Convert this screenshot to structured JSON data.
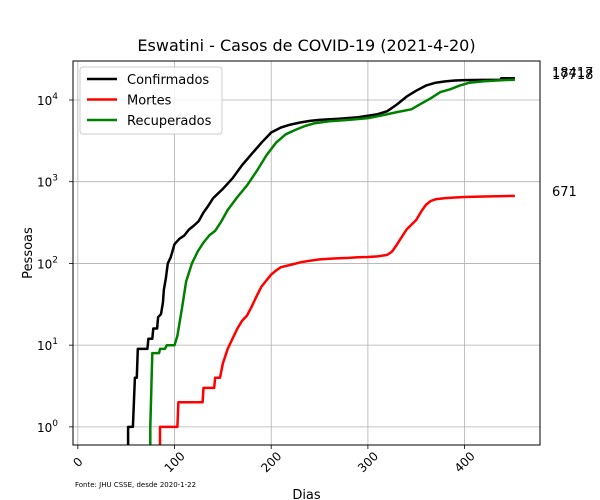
{
  "chart_data": {
    "type": "line",
    "title": "Eswatini - Casos de COVID-19 (2021-4-20)",
    "xlabel": "Dias",
    "ylabel": "Pessoas",
    "y_scale": "log",
    "xlim": [
      -5,
      478
    ],
    "ylim": [
      0.6,
      30000
    ],
    "x_ticks": [
      0,
      100,
      200,
      300,
      400
    ],
    "x_tick_labels": [
      "0",
      "100",
      "200",
      "300",
      "400"
    ],
    "y_ticks": [
      1,
      10,
      100,
      1000,
      10000
    ],
    "y_tick_exponents": [
      "0",
      "1",
      "2",
      "3",
      "4"
    ],
    "y_tick_base": "10",
    "grid": true,
    "legend_position": "top-left",
    "source_note": "Fonte: JHU CSSE, desde 2020-1-22",
    "end_labels": [
      "18417",
      "17718",
      "671"
    ],
    "series": [
      {
        "name": "Confirmados",
        "color": "#000000",
        "end_label": "18417",
        "points": [
          [
            52,
            1
          ],
          [
            57,
            1
          ],
          [
            59,
            4
          ],
          [
            61,
            4
          ],
          [
            62,
            9
          ],
          [
            72,
            9
          ],
          [
            73,
            12
          ],
          [
            77,
            12
          ],
          [
            78,
            16
          ],
          [
            82,
            16
          ],
          [
            83,
            22
          ],
          [
            86,
            24
          ],
          [
            88,
            33
          ],
          [
            89,
            48
          ],
          [
            91,
            65
          ],
          [
            93,
            100
          ],
          [
            96,
            119
          ],
          [
            100,
            172
          ],
          [
            105,
            200
          ],
          [
            110,
            219
          ],
          [
            115,
            260
          ],
          [
            120,
            290
          ],
          [
            125,
            330
          ],
          [
            130,
            420
          ],
          [
            135,
            510
          ],
          [
            140,
            630
          ],
          [
            150,
            820
          ],
          [
            160,
            1100
          ],
          [
            170,
            1600
          ],
          [
            180,
            2200
          ],
          [
            190,
            3000
          ],
          [
            200,
            4000
          ],
          [
            210,
            4600
          ],
          [
            220,
            5000
          ],
          [
            230,
            5300
          ],
          [
            240,
            5550
          ],
          [
            250,
            5700
          ],
          [
            270,
            5900
          ],
          [
            290,
            6150
          ],
          [
            310,
            6700
          ],
          [
            320,
            7300
          ],
          [
            330,
            8800
          ],
          [
            340,
            11000
          ],
          [
            350,
            13000
          ],
          [
            360,
            15000
          ],
          [
            370,
            16300
          ],
          [
            380,
            16900
          ],
          [
            390,
            17300
          ],
          [
            400,
            17500
          ],
          [
            420,
            17600
          ],
          [
            437,
            17650
          ],
          [
            438,
            18417
          ],
          [
            452,
            18417
          ]
        ]
      },
      {
        "name": "Mortes",
        "color": "#ff0000",
        "end_label": "671",
        "points": [
          [
            85,
            1
          ],
          [
            103,
            1
          ],
          [
            104,
            2
          ],
          [
            129,
            2
          ],
          [
            130,
            3
          ],
          [
            141,
            3
          ],
          [
            142,
            4
          ],
          [
            147,
            4
          ],
          [
            150,
            6
          ],
          [
            155,
            9
          ],
          [
            160,
            12
          ],
          [
            165,
            16
          ],
          [
            170,
            20
          ],
          [
            175,
            23
          ],
          [
            180,
            30
          ],
          [
            185,
            40
          ],
          [
            190,
            52
          ],
          [
            195,
            62
          ],
          [
            200,
            73
          ],
          [
            205,
            82
          ],
          [
            210,
            90
          ],
          [
            220,
            96
          ],
          [
            230,
            103
          ],
          [
            240,
            108
          ],
          [
            250,
            112
          ],
          [
            260,
            114
          ],
          [
            270,
            116
          ],
          [
            280,
            117
          ],
          [
            290,
            119
          ],
          [
            300,
            120
          ],
          [
            310,
            122
          ],
          [
            320,
            127
          ],
          [
            325,
            140
          ],
          [
            330,
            170
          ],
          [
            335,
            210
          ],
          [
            340,
            260
          ],
          [
            350,
            340
          ],
          [
            355,
            430
          ],
          [
            360,
            520
          ],
          [
            365,
            580
          ],
          [
            370,
            610
          ],
          [
            380,
            630
          ],
          [
            390,
            640
          ],
          [
            400,
            650
          ],
          [
            420,
            660
          ],
          [
            452,
            671
          ]
        ]
      },
      {
        "name": "Recuperados",
        "color": "#008000",
        "end_label": "17718",
        "points": [
          [
            75,
            1
          ],
          [
            77,
            8
          ],
          [
            84,
            8
          ],
          [
            85,
            9
          ],
          [
            90,
            9
          ],
          [
            92,
            10
          ],
          [
            100,
            10
          ],
          [
            103,
            13
          ],
          [
            108,
            30
          ],
          [
            112,
            60
          ],
          [
            118,
            100
          ],
          [
            124,
            140
          ],
          [
            130,
            180
          ],
          [
            136,
            220
          ],
          [
            142,
            250
          ],
          [
            148,
            320
          ],
          [
            155,
            450
          ],
          [
            165,
            650
          ],
          [
            175,
            900
          ],
          [
            185,
            1350
          ],
          [
            195,
            2100
          ],
          [
            205,
            3000
          ],
          [
            215,
            3800
          ],
          [
            225,
            4300
          ],
          [
            235,
            4800
          ],
          [
            245,
            5200
          ],
          [
            260,
            5500
          ],
          [
            280,
            5700
          ],
          [
            300,
            6000
          ],
          [
            315,
            6500
          ],
          [
            330,
            7100
          ],
          [
            345,
            7700
          ],
          [
            355,
            9000
          ],
          [
            365,
            10500
          ],
          [
            375,
            12500
          ],
          [
            385,
            13500
          ],
          [
            395,
            15000
          ],
          [
            405,
            16300
          ],
          [
            420,
            17000
          ],
          [
            440,
            17500
          ],
          [
            452,
            17718
          ]
        ]
      }
    ]
  }
}
